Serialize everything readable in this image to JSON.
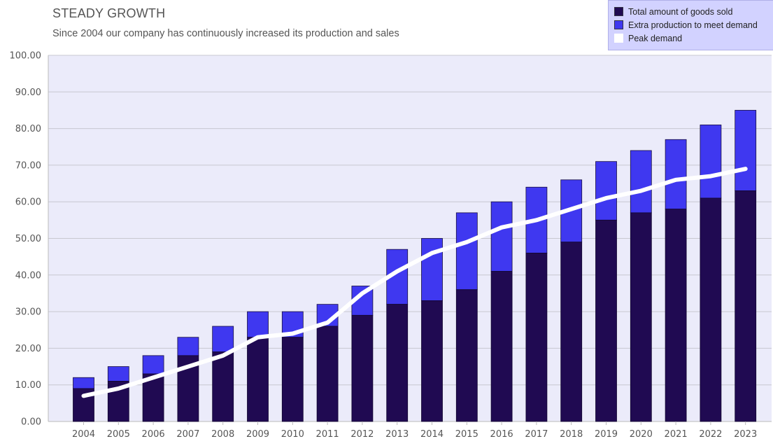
{
  "chart_data": {
    "type": "bar",
    "title": "STEADY GROWTH",
    "subtitle": "Since 2004 our company has continuously increased its production and sales",
    "categories": [
      "2004",
      "2005",
      "2006",
      "2007",
      "2008",
      "2009",
      "2010",
      "2011",
      "2012",
      "2013",
      "2014",
      "2015",
      "2016",
      "2017",
      "2018",
      "2019",
      "2020",
      "2021",
      "2022",
      "2023"
    ],
    "series": [
      {
        "name": "Total amount of goods sold",
        "type": "bar",
        "stacked": true,
        "color": "#200a52",
        "values": [
          9,
          11,
          13,
          18,
          19,
          23,
          23,
          26,
          29,
          32,
          33,
          36,
          41,
          46,
          49,
          55,
          57,
          58,
          61,
          63
        ]
      },
      {
        "name": "Extra production to meet demand",
        "type": "bar",
        "stacked": true,
        "color": "#3f38f0",
        "values": [
          3,
          4,
          5,
          5,
          7,
          7,
          7,
          6,
          8,
          15,
          17,
          21,
          19,
          18,
          17,
          16,
          17,
          19,
          20,
          22
        ]
      },
      {
        "name": "Peak demand",
        "type": "line",
        "color": "#ffffff",
        "values": [
          7,
          9,
          12,
          15,
          18,
          23,
          24,
          27,
          35,
          41,
          46,
          49,
          53,
          55,
          58,
          61,
          63,
          66,
          67,
          69
        ]
      }
    ],
    "ylim": [
      0,
      100
    ],
    "yticks": [
      "0.00",
      "10.00",
      "20.00",
      "30.00",
      "40.00",
      "50.00",
      "60.00",
      "70.00",
      "80.00",
      "90.00",
      "100.00"
    ],
    "xlabel": "",
    "ylabel": "",
    "plot_background": "#ebebfa",
    "grid": true,
    "legend_position": "top-right"
  }
}
